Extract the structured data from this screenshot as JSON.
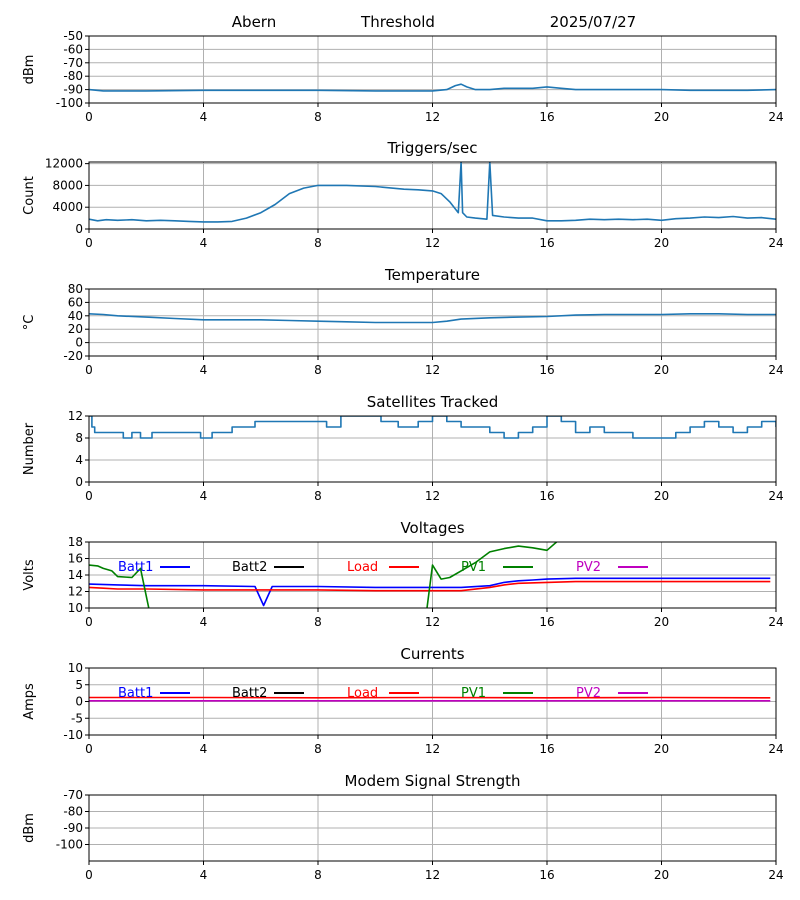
{
  "header": {
    "station": "Abern",
    "mode": "Threshold",
    "date": "2025/07/27"
  },
  "colors": {
    "series_default": "#1f77b4",
    "grid": "#b0b0b0",
    "batt1": "#0000ff",
    "batt2": "#000000",
    "load": "#ff0000",
    "pv1": "#008000",
    "pv2": "#bf00bf"
  },
  "chart_data": [
    {
      "id": "threshold",
      "type": "line",
      "title": "",
      "ylabel": "dBm",
      "xlim": [
        0,
        24
      ],
      "ylim": [
        -100,
        -50
      ],
      "xticks": [
        0,
        4,
        8,
        12,
        16,
        20,
        24
      ],
      "yticks": [
        -100,
        -90,
        -80,
        -70,
        -60,
        -50
      ],
      "grid": true,
      "series": [
        {
          "color": "#1f77b4",
          "x": [
            0,
            0.5,
            1,
            2,
            4,
            6,
            8,
            10,
            11,
            12,
            12.5,
            12.8,
            13,
            13.2,
            13.5,
            14,
            14.5,
            15,
            15.5,
            16,
            16.5,
            17,
            17.5,
            18,
            19,
            20,
            21,
            22,
            23,
            24
          ],
          "y": [
            -90,
            -91,
            -91,
            -91,
            -90.5,
            -90.5,
            -90.5,
            -91,
            -91,
            -91,
            -90,
            -87,
            -86,
            -88,
            -90,
            -90,
            -89,
            -89,
            -89,
            -88,
            -89,
            -90,
            -90,
            -90,
            -90,
            -90,
            -90.5,
            -90.5,
            -90.5,
            -90
          ]
        }
      ]
    },
    {
      "id": "triggers",
      "type": "line",
      "title": "Triggers/sec",
      "ylabel": "Count",
      "xlim": [
        0,
        24
      ],
      "ylim": [
        0,
        12300
      ],
      "xticks": [
        0,
        4,
        8,
        12,
        16,
        20,
        24
      ],
      "yticks": [
        0,
        4000,
        8000,
        12000
      ],
      "grid": true,
      "series": [
        {
          "color": "#1f77b4",
          "x": [
            0,
            0.3,
            0.6,
            1,
            1.5,
            2,
            2.5,
            3,
            3.5,
            4,
            4.5,
            5,
            5.5,
            6,
            6.5,
            7,
            7.5,
            8,
            9,
            10,
            11,
            11.5,
            12,
            12.3,
            12.6,
            12.9,
            13,
            13.05,
            13.2,
            13.5,
            13.9,
            14,
            14.1,
            14.5,
            15,
            15.5,
            16,
            16.5,
            17,
            17.5,
            18,
            18.5,
            19,
            19.5,
            20,
            20.5,
            21,
            21.5,
            22,
            22.5,
            23,
            23.5,
            24
          ],
          "y": [
            1800,
            1500,
            1700,
            1600,
            1700,
            1500,
            1600,
            1500,
            1400,
            1300,
            1300,
            1400,
            2000,
            3000,
            4500,
            6500,
            7500,
            8000,
            8000,
            7800,
            7300,
            7200,
            7000,
            6500,
            5000,
            3000,
            12300,
            3000,
            2200,
            2000,
            1800,
            12300,
            2500,
            2200,
            2000,
            2000,
            1500,
            1500,
            1600,
            1800,
            1700,
            1800,
            1700,
            1800,
            1600,
            1900,
            2000,
            2200,
            2100,
            2300,
            2000,
            2100,
            1800
          ]
        }
      ]
    },
    {
      "id": "temperature",
      "type": "line",
      "title": "Temperature",
      "ylabel": "°C",
      "xlim": [
        0,
        24
      ],
      "ylim": [
        -20,
        80
      ],
      "xticks": [
        0,
        4,
        8,
        12,
        16,
        20,
        24
      ],
      "yticks": [
        -20,
        0,
        20,
        40,
        60,
        80
      ],
      "grid": true,
      "series": [
        {
          "color": "#1f77b4",
          "x": [
            0,
            0.5,
            1,
            2,
            3,
            4,
            5,
            6,
            7,
            8,
            9,
            10,
            11,
            12,
            12.5,
            13,
            14,
            15,
            16,
            17,
            18,
            19,
            20,
            21,
            22,
            23,
            24
          ],
          "y": [
            43,
            42,
            40,
            38,
            36,
            34,
            34,
            34,
            33,
            32,
            31,
            30,
            30,
            30,
            32,
            35,
            37,
            38,
            39,
            41,
            42,
            42,
            42,
            43,
            43,
            42,
            42
          ]
        }
      ]
    },
    {
      "id": "satellites",
      "type": "line",
      "title": "Satellites Tracked",
      "ylabel": "Number",
      "xlim": [
        0,
        24
      ],
      "ylim": [
        0,
        12
      ],
      "xticks": [
        0,
        4,
        8,
        12,
        16,
        20,
        24
      ],
      "yticks": [
        0,
        4,
        8,
        12
      ],
      "grid": true,
      "step": true,
      "series": [
        {
          "color": "#1f77b4",
          "x": [
            0,
            0.1,
            0.2,
            1.2,
            1.5,
            1.8,
            2.2,
            2.5,
            3.5,
            3.9,
            4.3,
            5,
            5.8,
            6.3,
            7,
            7.5,
            8.3,
            8.8,
            9.5,
            10.2,
            10.8,
            11.5,
            12,
            12.5,
            13,
            13.5,
            14,
            14.5,
            15,
            15.5,
            16,
            16.5,
            17,
            17.5,
            18,
            18.5,
            19,
            19.5,
            20,
            20.5,
            21,
            21.5,
            22,
            22.5,
            23,
            23.5,
            24
          ],
          "y": [
            12,
            10,
            9,
            8,
            9,
            8,
            9,
            9,
            9,
            8,
            9,
            10,
            11,
            11,
            11,
            11,
            10,
            12,
            12,
            11,
            10,
            11,
            12,
            11,
            10,
            10,
            9,
            8,
            9,
            10,
            12,
            11,
            9,
            10,
            9,
            9,
            8,
            8,
            8,
            9,
            10,
            11,
            10,
            9,
            10,
            11,
            10
          ]
        }
      ]
    },
    {
      "id": "voltages",
      "type": "line",
      "title": "Voltages",
      "ylabel": "Volts",
      "xlim": [
        0,
        24
      ],
      "ylim": [
        10,
        18
      ],
      "xticks": [
        0,
        4,
        8,
        12,
        16,
        20,
        24
      ],
      "yticks": [
        10,
        12,
        14,
        16,
        18
      ],
      "grid": true,
      "legend": [
        "Batt1",
        "Batt2",
        "Load",
        "PV1",
        "PV2"
      ],
      "series": [
        {
          "name": "Batt1",
          "color": "#0000ff",
          "x": [
            0,
            1,
            2,
            4,
            5.8,
            6.1,
            6.4,
            8,
            10,
            12,
            13,
            14,
            14.5,
            15,
            15.5,
            16,
            17,
            18,
            20,
            22,
            23.8
          ],
          "y": [
            12.9,
            12.8,
            12.7,
            12.7,
            12.6,
            10.3,
            12.6,
            12.6,
            12.5,
            12.5,
            12.5,
            12.7,
            13.1,
            13.3,
            13.4,
            13.5,
            13.6,
            13.6,
            13.6,
            13.6,
            13.6
          ]
        },
        {
          "name": "Load",
          "color": "#ff0000",
          "x": [
            0,
            0.5,
            1,
            2,
            4,
            6,
            8,
            10,
            12,
            13,
            14,
            14.5,
            15,
            16,
            17,
            18,
            20,
            22,
            23.8
          ],
          "y": [
            12.5,
            12.4,
            12.3,
            12.3,
            12.2,
            12.2,
            12.2,
            12.1,
            12.1,
            12.1,
            12.5,
            12.8,
            13.0,
            13.1,
            13.2,
            13.2,
            13.2,
            13.2,
            13.2
          ]
        },
        {
          "name": "PV1",
          "color": "#008000",
          "x": [
            0,
            0.3,
            0.5,
            0.8,
            1,
            1.5,
            1.8,
            2.1,
            11.8,
            12,
            12.3,
            12.6,
            13,
            13.5,
            14,
            14.5,
            15,
            15.5,
            16,
            16.5
          ],
          "y": [
            15.2,
            15.1,
            14.8,
            14.5,
            13.8,
            13.7,
            14.8,
            9.8,
            9.8,
            15.2,
            13.5,
            13.7,
            14.5,
            15.5,
            16.8,
            17.2,
            17.5,
            17.3,
            17.0,
            18.5
          ]
        }
      ]
    },
    {
      "id": "currents",
      "type": "line",
      "title": "Currents",
      "ylabel": "Amps",
      "xlim": [
        0,
        24
      ],
      "ylim": [
        -10,
        10
      ],
      "xticks": [
        0,
        4,
        8,
        12,
        16,
        20,
        24
      ],
      "yticks": [
        -10,
        -5,
        0,
        5,
        10
      ],
      "grid": true,
      "legend": [
        "Batt1",
        "Batt2",
        "Load",
        "PV1",
        "PV2"
      ],
      "series": [
        {
          "name": "Load",
          "color": "#ff0000",
          "x": [
            0,
            4,
            8,
            12,
            16,
            20,
            23.8
          ],
          "y": [
            1.2,
            1.2,
            1.1,
            1.2,
            1.1,
            1.2,
            1.1
          ]
        },
        {
          "name": "PV2",
          "color": "#bf00bf",
          "x": [
            0,
            4,
            8,
            12,
            16,
            20,
            23.8
          ],
          "y": [
            0.2,
            0.2,
            0.2,
            0.2,
            0.2,
            0.2,
            0.2
          ]
        }
      ]
    },
    {
      "id": "modem",
      "type": "line",
      "title": "Modem Signal Strength",
      "ylabel": "dBm",
      "xlim": [
        0,
        24
      ],
      "ylim": [
        -110,
        -70
      ],
      "xticks": [
        0,
        4,
        8,
        12,
        16,
        20,
        24
      ],
      "yticks": [
        -100,
        -90,
        -80,
        -70
      ],
      "grid": true,
      "series": []
    }
  ]
}
